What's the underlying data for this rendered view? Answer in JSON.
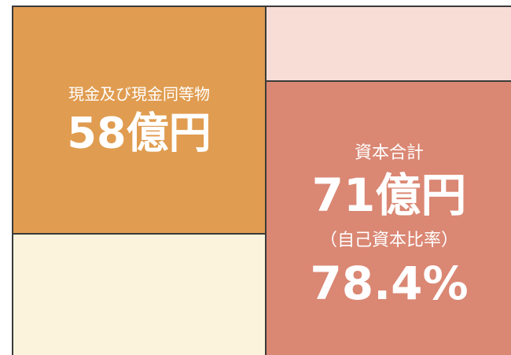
{
  "blocks": [
    {
      "label": "現金及び現金同等物",
      "value": "58億円"
    },
    {
      "label": "資本合計",
      "value": "71億円",
      "sublabel": "（自己資本比率）",
      "subvalue": "78.4%"
    }
  ]
}
